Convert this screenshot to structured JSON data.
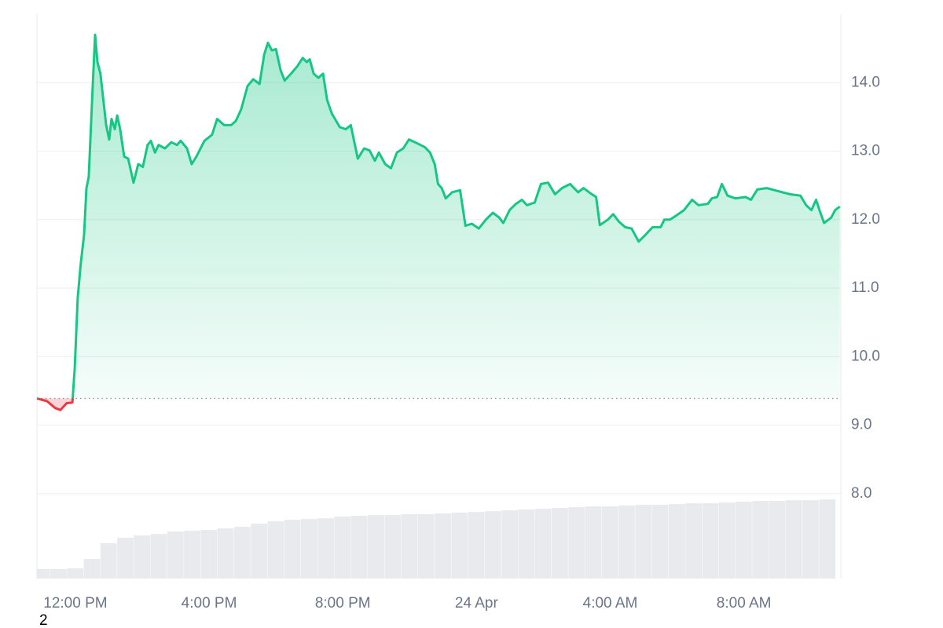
{
  "chart_data": {
    "type": "line",
    "color": "#16c784",
    "negative_color": "#ea3943",
    "baseline": 9.39,
    "xlim": [
      -1.15,
      22.9
    ],
    "ylim": [
      6.76,
      15.0
    ],
    "grid": true,
    "xticks": [
      {
        "value": 0,
        "label": "12:00 PM"
      },
      {
        "value": 4,
        "label": "4:00 PM"
      },
      {
        "value": 8,
        "label": "8:00 PM"
      },
      {
        "value": 12,
        "label": "24 Apr"
      },
      {
        "value": 16,
        "label": "4:00 AM"
      },
      {
        "value": 20,
        "label": "8:00 AM"
      }
    ],
    "yticks": [
      {
        "value": 8,
        "label": "8.0"
      },
      {
        "value": 9,
        "label": "9.0"
      },
      {
        "value": 10,
        "label": "10.0"
      },
      {
        "value": 11,
        "label": "11.0"
      },
      {
        "value": 12,
        "label": "12.0"
      },
      {
        "value": 13,
        "label": "13.0"
      },
      {
        "value": 14,
        "label": "14.0"
      }
    ],
    "x": [
      -1.15,
      -0.85,
      -0.61,
      -0.45,
      -0.26,
      -0.09,
      -0.02,
      0.07,
      0.16,
      0.26,
      0.33,
      0.4,
      0.52,
      0.59,
      0.66,
      0.75,
      0.92,
      1.01,
      1.08,
      1.18,
      1.25,
      1.34,
      1.46,
      1.58,
      1.74,
      1.88,
      2.02,
      2.16,
      2.26,
      2.38,
      2.49,
      2.68,
      2.87,
      3.04,
      3.15,
      3.34,
      3.48,
      3.62,
      3.86,
      4.09,
      4.24,
      4.45,
      4.66,
      4.8,
      4.96,
      5.15,
      5.32,
      5.51,
      5.65,
      5.76,
      5.88,
      6.0,
      6.14,
      6.26,
      6.45,
      6.64,
      6.8,
      6.92,
      7.01,
      7.13,
      7.27,
      7.41,
      7.53,
      7.67,
      7.91,
      8.09,
      8.24,
      8.45,
      8.64,
      8.8,
      8.96,
      9.08,
      9.27,
      9.44,
      9.62,
      9.81,
      9.98,
      10.16,
      10.45,
      10.61,
      10.75,
      10.85,
      10.96,
      11.08,
      11.27,
      11.51,
      11.67,
      11.86,
      12.07,
      12.28,
      12.49,
      12.68,
      12.8,
      12.99,
      13.18,
      13.36,
      13.51,
      13.74,
      13.93,
      14.14,
      14.35,
      14.56,
      14.8,
      15.04,
      15.2,
      15.39,
      15.58,
      15.69,
      15.93,
      16.09,
      16.26,
      16.45,
      16.64,
      16.85,
      17.04,
      17.27,
      17.51,
      17.62,
      17.79,
      17.98,
      18.21,
      18.45,
      18.64,
      18.92,
      19.04,
      19.2,
      19.34,
      19.51,
      19.74,
      20.05,
      20.21,
      20.4,
      20.68,
      20.92,
      21.15,
      21.39,
      21.69,
      21.86,
      22.02,
      22.16,
      22.26,
      22.4,
      22.61,
      22.73,
      22.87
    ],
    "values": [
      9.39,
      9.35,
      9.25,
      9.22,
      9.32,
      9.33,
      9.83,
      10.86,
      11.35,
      11.78,
      12.46,
      12.62,
      13.95,
      14.7,
      14.3,
      14.13,
      13.38,
      13.17,
      13.47,
      13.32,
      13.52,
      13.32,
      12.92,
      12.89,
      12.54,
      12.81,
      12.77,
      13.09,
      13.15,
      12.98,
      13.09,
      13.04,
      13.13,
      13.09,
      13.15,
      13.04,
      12.81,
      12.92,
      13.15,
      13.24,
      13.47,
      13.38,
      13.38,
      13.44,
      13.61,
      13.95,
      14.05,
      13.98,
      14.41,
      14.58,
      14.47,
      14.49,
      14.18,
      14.03,
      14.13,
      14.24,
      14.36,
      14.3,
      14.34,
      14.13,
      14.07,
      14.13,
      13.75,
      13.55,
      13.35,
      13.32,
      13.38,
      12.89,
      13.04,
      13.01,
      12.86,
      12.98,
      12.81,
      12.75,
      12.98,
      13.04,
      13.17,
      13.13,
      13.06,
      12.98,
      12.81,
      12.52,
      12.46,
      12.31,
      12.4,
      12.43,
      11.91,
      11.94,
      11.87,
      12.0,
      12.1,
      12.03,
      11.95,
      12.14,
      12.23,
      12.29,
      12.21,
      12.25,
      12.52,
      12.54,
      12.37,
      12.46,
      12.52,
      12.4,
      12.46,
      12.39,
      12.33,
      11.92,
      12.0,
      12.08,
      11.97,
      11.89,
      11.87,
      11.68,
      11.77,
      11.89,
      11.89,
      12.0,
      12.0,
      12.06,
      12.14,
      12.29,
      12.21,
      12.23,
      12.31,
      12.33,
      12.52,
      12.35,
      12.31,
      12.33,
      12.29,
      12.44,
      12.46,
      12.43,
      12.4,
      12.37,
      12.35,
      12.21,
      12.14,
      12.29,
      12.14,
      11.95,
      12.03,
      12.14,
      12.19
    ],
    "volume": {
      "color": "#e8eaee",
      "ylim": [
        0,
        720
      ],
      "x": [
        -1,
        -0.5,
        0,
        0.5,
        1,
        1.5,
        2,
        2.5,
        3,
        3.5,
        4,
        4.5,
        5,
        5.5,
        6,
        6.5,
        7,
        7.5,
        8,
        8.5,
        9,
        9.5,
        10,
        10.5,
        11,
        11.5,
        12,
        12.5,
        13,
        13.5,
        14,
        14.5,
        15,
        15.5,
        16,
        16.5,
        17,
        17.5,
        18,
        18.5,
        19,
        19.5,
        20,
        20.5,
        21,
        21.5,
        22,
        22.5
      ],
      "values": [
        12,
        12,
        13,
        25,
        45,
        52,
        55,
        57,
        60,
        61,
        62,
        64,
        66,
        70,
        73,
        75,
        76,
        77,
        79,
        80,
        81,
        81,
        82,
        82,
        83,
        84,
        85,
        86,
        87,
        88,
        89,
        90,
        91,
        92,
        92,
        93,
        94,
        94,
        95,
        96,
        96,
        97,
        98,
        99,
        99,
        100,
        100,
        101
      ]
    },
    "annotation": "2"
  }
}
